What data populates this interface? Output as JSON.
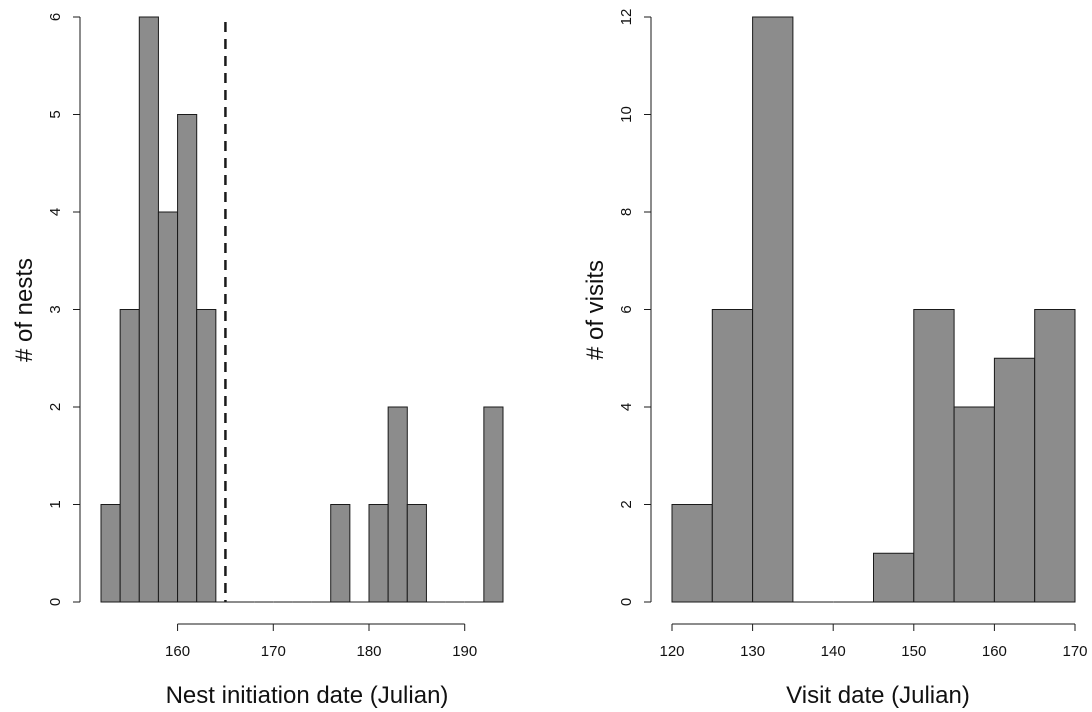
{
  "chart_data": [
    {
      "type": "histogram",
      "xlabel": "Nest initiation date (Julian)",
      "ylabel": "# of nests",
      "xlim": [
        150,
        195
      ],
      "ylim": [
        0,
        6
      ],
      "x_ticks": [
        160,
        170,
        180,
        190
      ],
      "y_ticks": [
        0,
        1,
        2,
        3,
        4,
        5,
        6
      ],
      "bin_width": 2,
      "bins": [
        {
          "start": 152,
          "end": 154,
          "count": 1
        },
        {
          "start": 154,
          "end": 156,
          "count": 3
        },
        {
          "start": 156,
          "end": 158,
          "count": 6
        },
        {
          "start": 158,
          "end": 160,
          "count": 4
        },
        {
          "start": 160,
          "end": 162,
          "count": 5
        },
        {
          "start": 162,
          "end": 164,
          "count": 3
        },
        {
          "start": 164,
          "end": 166,
          "count": 0
        },
        {
          "start": 166,
          "end": 168,
          "count": 0
        },
        {
          "start": 168,
          "end": 170,
          "count": 0
        },
        {
          "start": 170,
          "end": 172,
          "count": 0
        },
        {
          "start": 172,
          "end": 174,
          "count": 0
        },
        {
          "start": 174,
          "end": 176,
          "count": 0
        },
        {
          "start": 176,
          "end": 178,
          "count": 1
        },
        {
          "start": 178,
          "end": 180,
          "count": 0
        },
        {
          "start": 180,
          "end": 182,
          "count": 1
        },
        {
          "start": 182,
          "end": 184,
          "count": 2
        },
        {
          "start": 184,
          "end": 186,
          "count": 1
        },
        {
          "start": 186,
          "end": 188,
          "count": 0
        },
        {
          "start": 188,
          "end": 190,
          "count": 0
        },
        {
          "start": 190,
          "end": 192,
          "count": 0
        },
        {
          "start": 192,
          "end": 194,
          "count": 2
        }
      ],
      "reference_line": {
        "x": 165,
        "style": "dashed"
      }
    },
    {
      "type": "histogram",
      "xlabel": "Visit date (Julian)",
      "ylabel": "# of visits",
      "xlim": [
        120,
        170
      ],
      "ylim": [
        0,
        12
      ],
      "x_ticks": [
        120,
        130,
        140,
        150,
        160,
        170
      ],
      "y_ticks": [
        0,
        2,
        4,
        6,
        8,
        10,
        12
      ],
      "bin_width": 5,
      "bins": [
        {
          "start": 120,
          "end": 125,
          "count": 2
        },
        {
          "start": 125,
          "end": 130,
          "count": 6
        },
        {
          "start": 130,
          "end": 135,
          "count": 12
        },
        {
          "start": 135,
          "end": 140,
          "count": 0
        },
        {
          "start": 140,
          "end": 145,
          "count": 0
        },
        {
          "start": 145,
          "end": 150,
          "count": 1
        },
        {
          "start": 150,
          "end": 155,
          "count": 6
        },
        {
          "start": 155,
          "end": 160,
          "count": 4
        },
        {
          "start": 160,
          "end": 165,
          "count": 5
        },
        {
          "start": 165,
          "end": 170,
          "count": 6
        }
      ]
    }
  ]
}
